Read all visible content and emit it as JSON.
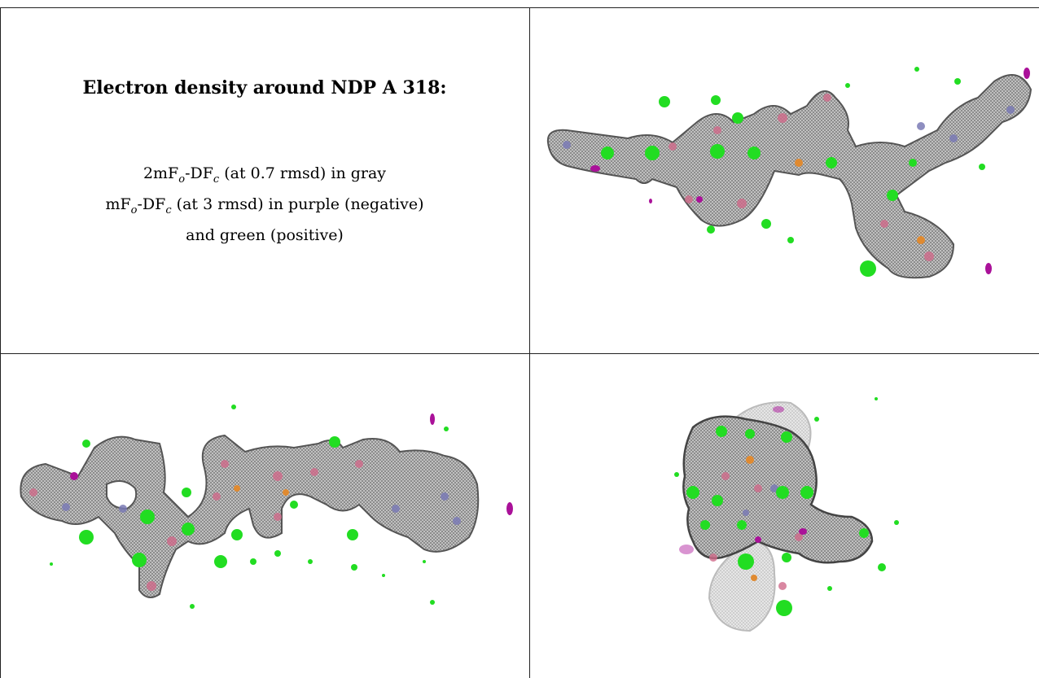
{
  "title": "Electron density around NDP A 318:",
  "legend": {
    "line1": {
      "prefix": "2mF",
      "sub1": "o",
      "mid": "-DF",
      "sub2": "c",
      "suffix": " (at 0.7 rmsd) in gray"
    },
    "line2": {
      "prefix": "mF",
      "sub1": "o",
      "mid": "-DF",
      "sub2": "c",
      "suffix": " (at 3 rmsd) in purple (negative)"
    },
    "line3": "and green (positive)"
  },
  "colors": {
    "density_gray": "#8a8a8a",
    "density_dark": "#4a4a4a",
    "positive_green": "#22dd22",
    "negative_purple": "#aa1199",
    "oxygen_pink": "#d06a8a",
    "nitrogen_blue": "#6a6aaa",
    "phosphorus_orange": "#e08a30",
    "bond_green": "#66dd66"
  },
  "panels": [
    {
      "name": "view-top-right"
    },
    {
      "name": "view-bottom-left"
    },
    {
      "name": "view-bottom-right"
    }
  ]
}
